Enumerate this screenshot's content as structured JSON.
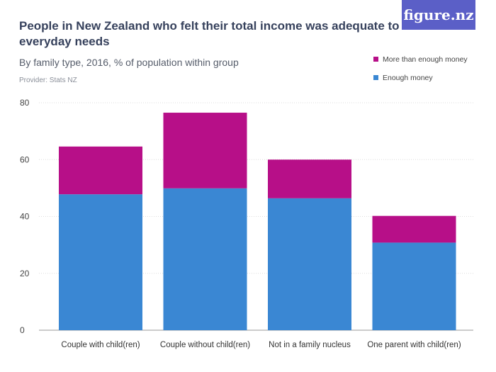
{
  "header": {
    "title": "People in New Zealand who felt their total income was adequate to everyday needs",
    "subtitle": "By family type, 2016, % of population within group",
    "provider": "Provider: Stats NZ",
    "logo_text": "figure.nz"
  },
  "colors": {
    "enough": "#3a87d3",
    "more_than_enough": "#b70f88",
    "logo_bg": "#5b5fc7",
    "grid": "#dddddd"
  },
  "chart_data": {
    "type": "bar",
    "stacked": true,
    "categories": [
      "Couple with child(ren)",
      "Couple without child(ren)",
      "Not in a family nucleus",
      "One parent with child(ren)"
    ],
    "series": [
      {
        "name": "Enough money",
        "color": "#3a87d3",
        "values": [
          47.8,
          49.9,
          46.4,
          30.8
        ]
      },
      {
        "name": "More than enough money",
        "color": "#b70f88",
        "values": [
          16.8,
          26.6,
          13.6,
          9.4
        ]
      }
    ],
    "ylim": [
      0,
      80
    ],
    "yticks": [
      0,
      20,
      40,
      60,
      80
    ],
    "grid": true,
    "legend": "top-right",
    "xlabel": "",
    "ylabel": ""
  }
}
